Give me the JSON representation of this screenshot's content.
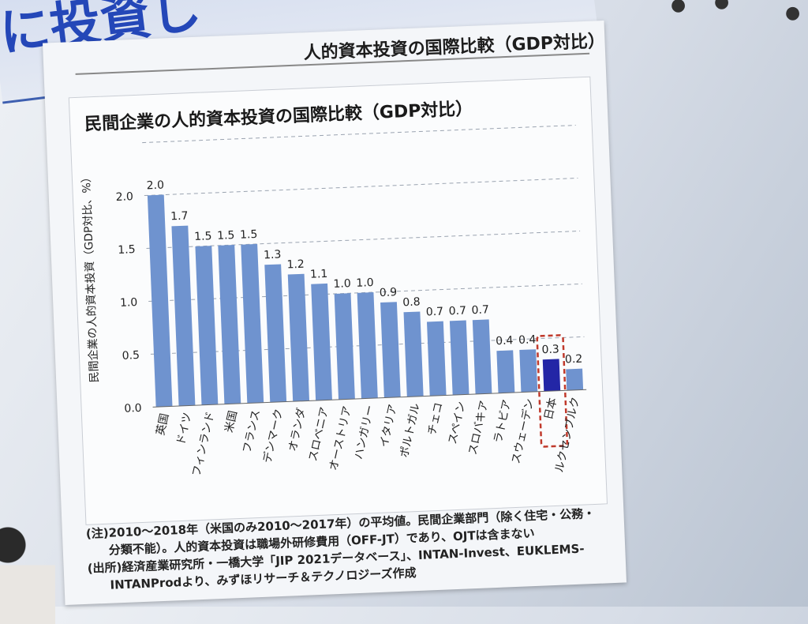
{
  "slide": {
    "title_fragment": "に投資し",
    "panel_title": "人的資本投資の国際比較（GDP対比）"
  },
  "chart_data": {
    "type": "bar",
    "title": "民間企業の人的資本投資の国際比較（GDP対比）",
    "ylabel": "民間企業の人的資本投資（GDP対比、%）",
    "ylim": [
      0,
      2.5
    ],
    "yticks": [
      "0.0",
      "0.5",
      "1.0",
      "1.5",
      "2.0"
    ],
    "categories": [
      "英国",
      "ドイツ",
      "フィンランド",
      "米国",
      "フランス",
      "デンマーク",
      "オランダ",
      "スロベニア",
      "オーストリア",
      "ハンガリー",
      "イタリア",
      "ポルトガル",
      "チェコ",
      "スペイン",
      "スロバキア",
      "ラトビア",
      "スウェーデン",
      "日本",
      "ルクセンブルク"
    ],
    "values": [
      2.0,
      1.7,
      1.5,
      1.5,
      1.5,
      1.3,
      1.2,
      1.1,
      1.0,
      1.0,
      0.9,
      0.8,
      0.7,
      0.7,
      0.7,
      0.4,
      0.4,
      0.3,
      0.2
    ],
    "value_labels": [
      "2.0",
      "1.7",
      "1.5",
      "1.5",
      "1.5",
      "1.3",
      "1.2",
      "1.1",
      "1.0",
      "1.0",
      "0.9",
      "0.8",
      "0.7",
      "0.7",
      "0.7",
      "0.4",
      "0.4",
      "0.3",
      "0.2"
    ],
    "highlight": "日本",
    "bar_color": "#6f93cf",
    "highlight_color": "#2326a6",
    "highlight_box_color": "#c0392b",
    "grid": "dashed"
  },
  "notes": {
    "line1": "(注)2010～2018年（米国のみ2010～2017年）の平均値。民間企業部門（除く住宅・公務・",
    "line2": "分類不能）。人的資本投資は職場外研修費用（OFF-JT）であり、OJTは含まない",
    "line3": "(出所)経済産業研究所・一橋大学「JIP 2021データベース」、INTAN-Invest、EUKLEMS-",
    "line4": "INTANProdより、みずほリサーチ＆テクノロジーズ作成"
  }
}
